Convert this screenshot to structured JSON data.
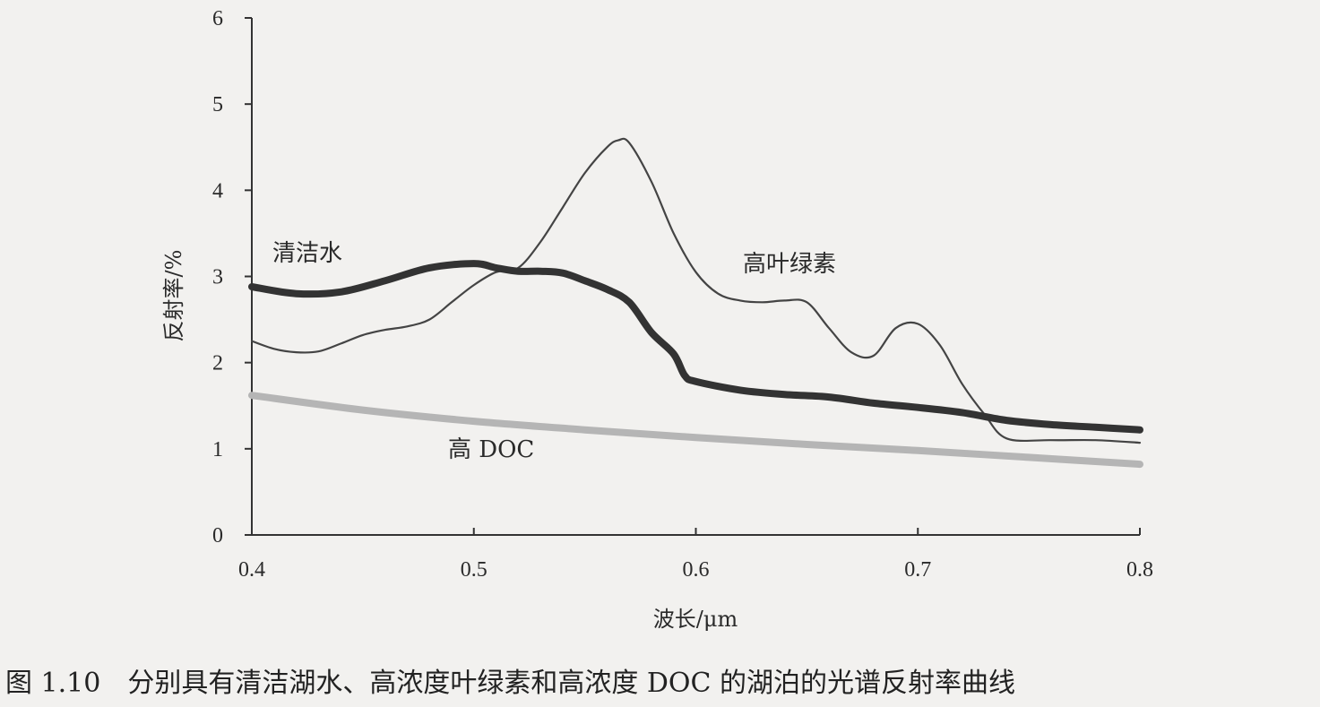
{
  "chart_data": {
    "type": "line",
    "xlabel": "波长/μm",
    "ylabel": "反射率/%",
    "xlim": [
      0.4,
      0.8
    ],
    "ylim": [
      0,
      6
    ],
    "xticks": [
      "0.4",
      "0.5",
      "0.6",
      "0.7",
      "0.8"
    ],
    "yticks": [
      "0",
      "1",
      "2",
      "3",
      "4",
      "5",
      "6"
    ],
    "grid": false,
    "series": [
      {
        "name": "清洁水",
        "color": "#333333",
        "x": [
          0.4,
          0.42,
          0.44,
          0.46,
          0.48,
          0.5,
          0.51,
          0.52,
          0.53,
          0.54,
          0.55,
          0.56,
          0.57,
          0.58,
          0.59,
          0.595,
          0.6,
          0.62,
          0.64,
          0.66,
          0.68,
          0.7,
          0.72,
          0.74,
          0.76,
          0.78,
          0.8
        ],
        "y": [
          2.88,
          2.8,
          2.82,
          2.95,
          3.1,
          3.15,
          3.1,
          3.06,
          3.06,
          3.04,
          2.95,
          2.85,
          2.7,
          2.35,
          2.1,
          1.85,
          1.78,
          1.68,
          1.63,
          1.6,
          1.53,
          1.48,
          1.42,
          1.33,
          1.28,
          1.25,
          1.22
        ]
      },
      {
        "name": "高叶绿素",
        "color": "#444444",
        "x": [
          0.4,
          0.41,
          0.42,
          0.43,
          0.44,
          0.45,
          0.46,
          0.47,
          0.48,
          0.49,
          0.5,
          0.51,
          0.52,
          0.53,
          0.54,
          0.55,
          0.56,
          0.565,
          0.57,
          0.58,
          0.59,
          0.6,
          0.61,
          0.62,
          0.63,
          0.64,
          0.65,
          0.66,
          0.67,
          0.68,
          0.69,
          0.7,
          0.71,
          0.72,
          0.73,
          0.74,
          0.76,
          0.78,
          0.8
        ],
        "y": [
          2.25,
          2.16,
          2.12,
          2.13,
          2.22,
          2.32,
          2.38,
          2.42,
          2.5,
          2.7,
          2.9,
          3.05,
          3.1,
          3.4,
          3.8,
          4.2,
          4.5,
          4.58,
          4.55,
          4.1,
          3.5,
          3.05,
          2.8,
          2.72,
          2.7,
          2.72,
          2.7,
          2.4,
          2.12,
          2.08,
          2.4,
          2.45,
          2.2,
          1.75,
          1.4,
          1.12,
          1.1,
          1.1,
          1.07
        ]
      },
      {
        "name": "高DOC",
        "color": "#b5b5b5",
        "x": [
          0.4,
          0.45,
          0.5,
          0.55,
          0.6,
          0.65,
          0.7,
          0.75,
          0.8
        ],
        "y": [
          1.62,
          1.45,
          1.32,
          1.22,
          1.13,
          1.05,
          0.98,
          0.9,
          0.82
        ]
      }
    ],
    "annotations": [
      "清洁水",
      "高叶绿素",
      "高 DOC"
    ]
  },
  "caption": "图 1.10　分别具有清洁湖水、高浓度叶绿素和高浓度 DOC 的湖泊的光谱反射率曲线"
}
